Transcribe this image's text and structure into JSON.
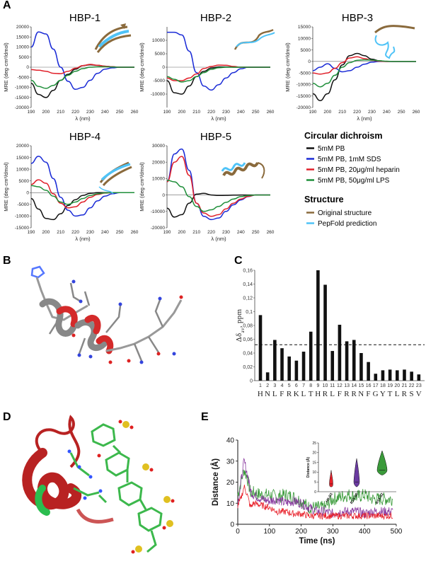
{
  "panels": {
    "A": "A",
    "B": "B",
    "C": "C",
    "D": "D",
    "E": "E"
  },
  "cd_titles": [
    "HBP-1",
    "HBP-2",
    "HBP-3",
    "HBP-4",
    "HBP-5"
  ],
  "cd_axis": {
    "ylabel": "MRE (deg·cm²/dmol)",
    "xlabel": "λ (nm)"
  },
  "legend": {
    "cd_heading": "Circular dichroism",
    "cd_items": [
      {
        "label": "5mM PB",
        "color": "#111111"
      },
      {
        "label": "5mM PB, 1mM SDS",
        "color": "#1a2bd6"
      },
      {
        "label": "5mM PB, 20μg/ml heparin",
        "color": "#e0202a"
      },
      {
        "label": "5mM PB, 50μg/ml LPS",
        "color": "#1f8f3a"
      }
    ],
    "struct_heading": "Structure",
    "struct_items": [
      {
        "label": "Original structure",
        "color": "#8a6a3c"
      },
      {
        "label": "PepFold prediction",
        "color": "#4fc3f7"
      }
    ]
  },
  "panel_c": {
    "ylabel": "Δδ",
    "ylabel_sub": "av",
    "ylabel_tail": ", ppm",
    "residues": [
      "H",
      "N",
      "L",
      "F",
      "R",
      "K",
      "L",
      "T",
      "H",
      "R",
      "L",
      "F",
      "R",
      "R",
      "N",
      "F",
      "G",
      "Y",
      "T",
      "L",
      "R",
      "S",
      "V"
    ]
  },
  "panel_e": {
    "xlabel": "Time (ns)",
    "ylabel": "Distance (Å)",
    "inset_ylabel": "Distance (Å)",
    "inset_labels": [
      "H9-S3",
      "R10-S6",
      "R14-S2"
    ]
  },
  "chart_data": [
    {
      "type": "line",
      "title": "HBP-1",
      "xlabel": "λ (nm)",
      "ylabel": "MRE (deg·cm²/dmol)",
      "xlim": [
        190,
        260
      ],
      "ylim": [
        -20000,
        20000
      ],
      "yticks": [
        -20000,
        -15000,
        -10000,
        -5000,
        0,
        5000,
        10000,
        15000,
        20000
      ],
      "x": [
        190,
        195,
        200,
        205,
        210,
        215,
        220,
        225,
        230,
        235,
        240,
        245,
        250,
        255,
        260
      ],
      "series": [
        {
          "color": "#111111",
          "values": [
            -8000,
            -13500,
            -15000,
            -11500,
            -6500,
            -3500,
            -1000,
            800,
            1200,
            900,
            500,
            200,
            0,
            0,
            0
          ]
        },
        {
          "color": "#1a2bd6",
          "values": [
            10000,
            17500,
            16500,
            9000,
            0,
            -7000,
            -11000,
            -10000,
            -6500,
            -3000,
            -1000,
            -300,
            0,
            0,
            0
          ]
        },
        {
          "color": "#e0202a",
          "values": [
            -1200,
            -1500,
            -2000,
            -3000,
            -3200,
            -2000,
            -500,
            800,
            1400,
            1000,
            500,
            200,
            0,
            0,
            0
          ]
        },
        {
          "color": "#1f8f3a",
          "values": [
            -6500,
            -9500,
            -10500,
            -9000,
            -6500,
            -4000,
            -2000,
            -700,
            0,
            200,
            200,
            100,
            0,
            0,
            0
          ]
        }
      ]
    },
    {
      "type": "line",
      "title": "HBP-2",
      "xlabel": "λ (nm)",
      "ylabel": "MRE (deg·cm²/dmol)",
      "xlim": [
        190,
        260
      ],
      "ylim": [
        -15000,
        15000
      ],
      "yticks": [
        -10000,
        -5000,
        0,
        5000,
        10000
      ],
      "x": [
        190,
        195,
        200,
        205,
        210,
        215,
        220,
        225,
        230,
        235,
        240,
        245,
        250,
        255,
        260
      ],
      "series": [
        {
          "color": "#111111",
          "values": [
            -5000,
            -9500,
            -10000,
            -7000,
            -3500,
            -1500,
            -300,
            100,
            100,
            0,
            0,
            0,
            0,
            0,
            0
          ]
        },
        {
          "color": "#1a2bd6",
          "values": [
            13000,
            13000,
            12000,
            6000,
            -2000,
            -7000,
            -8500,
            -6500,
            -4000,
            -2000,
            -600,
            0,
            0,
            0,
            0
          ]
        },
        {
          "color": "#e0202a",
          "values": [
            -4000,
            -5000,
            -5000,
            -4000,
            -2500,
            -500,
            300,
            800,
            700,
            300,
            0,
            0,
            0,
            0,
            0
          ]
        },
        {
          "color": "#1f8f3a",
          "values": [
            -3500,
            -4500,
            -5500,
            -5000,
            -3500,
            -2000,
            -800,
            -200,
            0,
            0,
            0,
            0,
            0,
            0,
            0
          ]
        }
      ]
    },
    {
      "type": "line",
      "title": "HBP-3",
      "xlabel": "λ (nm)",
      "ylabel": "MRE (deg·cm²/dmol)",
      "xlim": [
        190,
        260
      ],
      "ylim": [
        -20000,
        15000
      ],
      "yticks": [
        -20000,
        -15000,
        -10000,
        -5000,
        0,
        5000,
        10000,
        15000
      ],
      "x": [
        190,
        195,
        200,
        205,
        210,
        215,
        220,
        225,
        230,
        235,
        240,
        245,
        250,
        255,
        260
      ],
      "series": [
        {
          "color": "#111111",
          "values": [
            -14000,
            -17000,
            -14000,
            -8000,
            -1500,
            2500,
            3500,
            2500,
            1000,
            300,
            0,
            0,
            0,
            0,
            0
          ]
        },
        {
          "color": "#1a2bd6",
          "values": [
            -4000,
            -2500,
            -1000,
            -3000,
            -4500,
            -4000,
            -2500,
            -1200,
            -300,
            0,
            0,
            0,
            0,
            0,
            0
          ]
        },
        {
          "color": "#e0202a",
          "values": [
            -5000,
            -5500,
            -5000,
            -3000,
            -500,
            1500,
            2000,
            1200,
            500,
            100,
            0,
            0,
            0,
            0,
            0
          ]
        },
        {
          "color": "#1f8f3a",
          "values": [
            -9500,
            -11000,
            -9500,
            -6000,
            -2500,
            -500,
            500,
            700,
            600,
            300,
            100,
            0,
            0,
            0,
            0
          ]
        }
      ]
    },
    {
      "type": "line",
      "title": "HBP-4",
      "xlabel": "λ (nm)",
      "ylabel": "MRE (deg·cm²/dmol)",
      "xlim": [
        190,
        260
      ],
      "ylim": [
        -15000,
        20000
      ],
      "yticks": [
        -15000,
        -10000,
        -5000,
        0,
        5000,
        10000,
        15000,
        20000
      ],
      "x": [
        190,
        195,
        200,
        205,
        210,
        215,
        220,
        225,
        230,
        235,
        240,
        245,
        250,
        255,
        260
      ],
      "series": [
        {
          "color": "#111111",
          "values": [
            -2500,
            -7000,
            -11000,
            -11500,
            -9000,
            -5500,
            -3000,
            -1200,
            -300,
            0,
            0,
            0,
            0,
            0,
            0
          ]
        },
        {
          "color": "#1a2bd6",
          "values": [
            12500,
            15500,
            13000,
            6000,
            -2000,
            -7500,
            -10000,
            -9500,
            -6500,
            -3500,
            -1500,
            -500,
            0,
            0,
            0
          ]
        },
        {
          "color": "#e0202a",
          "values": [
            3500,
            5500,
            4000,
            -500,
            -4500,
            -6500,
            -6000,
            -4000,
            -2000,
            -800,
            -200,
            0,
            0,
            0,
            0
          ]
        },
        {
          "color": "#1f8f3a",
          "values": [
            3000,
            2500,
            1000,
            -1500,
            -4000,
            -5000,
            -4000,
            -2500,
            -1200,
            -500,
            -100,
            0,
            0,
            0,
            0
          ]
        }
      ]
    },
    {
      "type": "line",
      "title": "HBP-5",
      "xlabel": "λ (nm)",
      "ylabel": "MRE (deg·cm²/dmol)",
      "xlim": [
        190,
        260
      ],
      "ylim": [
        -20000,
        30000
      ],
      "yticks": [
        -20000,
        -10000,
        0,
        10000,
        20000,
        30000
      ],
      "x": [
        190,
        195,
        200,
        205,
        210,
        215,
        220,
        225,
        230,
        235,
        240,
        245,
        250,
        255,
        260
      ],
      "series": [
        {
          "color": "#111111",
          "values": [
            -8000,
            -13500,
            -12000,
            -5000,
            500,
            1000,
            0,
            -300,
            -200,
            -100,
            0,
            0,
            0,
            0,
            0
          ]
        },
        {
          "color": "#1a2bd6",
          "values": [
            8000,
            25000,
            28000,
            15000,
            -5000,
            -13000,
            -15000,
            -14000,
            -10000,
            -6000,
            -3000,
            -1000,
            0,
            0,
            0
          ]
        },
        {
          "color": "#e0202a",
          "values": [
            8000,
            20000,
            23500,
            12000,
            -5000,
            -11000,
            -13000,
            -12000,
            -8500,
            -5000,
            -2500,
            -800,
            0,
            0,
            0
          ]
        },
        {
          "color": "#1f8f3a",
          "values": [
            9000,
            8000,
            5000,
            -1000,
            -7000,
            -10000,
            -9000,
            -7000,
            -4500,
            -2500,
            -1000,
            -300,
            0,
            0,
            0
          ]
        }
      ]
    },
    {
      "type": "bar",
      "xlabel": "",
      "ylabel": "Δδav, ppm",
      "categories": [
        "1",
        "2",
        "3",
        "4",
        "5",
        "6",
        "7",
        "8",
        "9",
        "10",
        "11",
        "12",
        "13",
        "14",
        "15",
        "16",
        "17",
        "18",
        "19",
        "20",
        "21",
        "22",
        "23"
      ],
      "values": [
        0.095,
        0.012,
        0.059,
        0.047,
        0.035,
        0.029,
        0.042,
        0.071,
        0.16,
        0.139,
        0.043,
        0.081,
        0.057,
        0.059,
        0.04,
        0.027,
        0.01,
        0.015,
        0.016,
        0.015,
        0.016,
        0.013,
        0.009
      ],
      "threshold": 0.052,
      "ylim": [
        0,
        0.16
      ],
      "yticks": [
        0,
        0.02,
        0.04,
        0.06,
        0.08,
        0.1,
        0.12,
        0.14,
        0.16
      ],
      "ytick_labels": [
        "0",
        "0,02",
        "0,04",
        "0,06",
        "0,08",
        "0,1",
        "0,12",
        "0,14",
        "0,16"
      ]
    },
    {
      "type": "line",
      "xlabel": "Time (ns)",
      "ylabel": "Distance (Å)",
      "xlim": [
        0,
        500
      ],
      "ylim": [
        0,
        40
      ],
      "xticks": [
        0,
        100,
        200,
        300,
        400,
        500
      ],
      "yticks": [
        0,
        10,
        20,
        30,
        40
      ],
      "x": [
        0,
        10,
        20,
        30,
        40,
        50,
        75,
        100,
        125,
        150,
        175,
        200,
        225,
        250,
        275,
        300,
        325,
        350,
        375,
        400,
        425,
        450,
        475,
        490
      ],
      "series": [
        {
          "color": "#e8202a",
          "values": [
            9,
            12,
            18,
            14,
            8,
            10,
            9,
            8,
            6,
            6,
            5,
            5,
            4,
            4,
            4,
            4,
            4,
            4,
            4,
            4,
            4,
            4,
            4,
            4
          ]
        },
        {
          "color": "#8a3aa0",
          "values": [
            10,
            20,
            30,
            24,
            16,
            14,
            12,
            11,
            12,
            10,
            11,
            10,
            8,
            6,
            6,
            5,
            6,
            6,
            6,
            5,
            6,
            6,
            6,
            6
          ]
        },
        {
          "color": "#3a9a3a",
          "values": [
            14,
            20,
            26,
            22,
            15,
            15,
            14,
            14,
            13,
            14,
            13,
            11,
            8,
            8,
            8,
            12,
            13,
            14,
            13,
            14,
            12,
            12,
            12,
            12
          ]
        }
      ]
    },
    {
      "type": "violin",
      "ylabel": "Distance (Å)",
      "ylim": [
        0,
        25
      ],
      "yticks": [
        0,
        5,
        10,
        15,
        20,
        25
      ],
      "categories": [
        "H9-S3",
        "R10-S6",
        "R14-S2"
      ],
      "medians": [
        4,
        5,
        11
      ],
      "colors": [
        "#e8202a",
        "#6a3aa0",
        "#3a9a3a"
      ]
    }
  ]
}
